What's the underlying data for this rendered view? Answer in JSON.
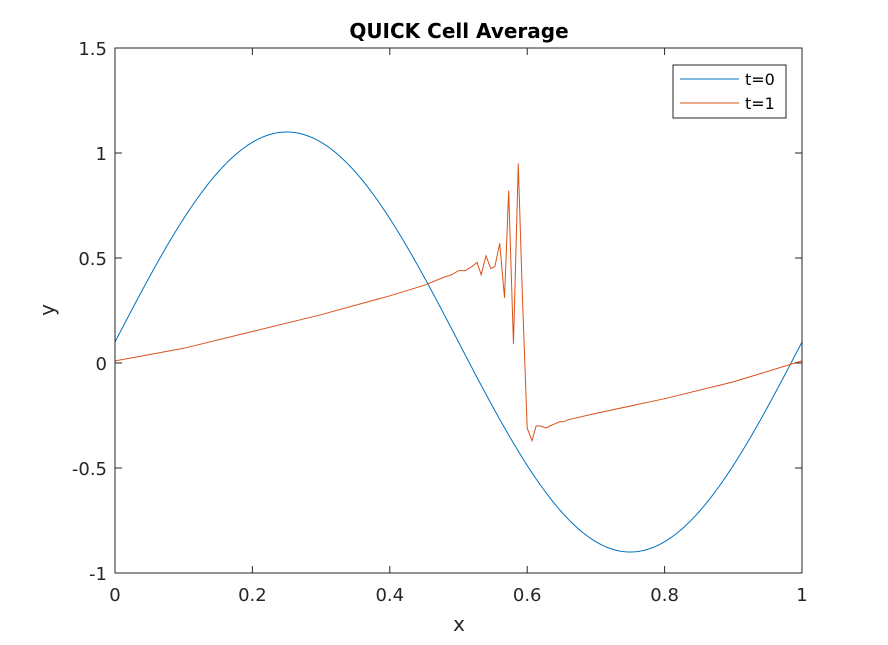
{
  "chart_data": {
    "type": "line",
    "title": "QUICK Cell Average",
    "xlabel": "x",
    "ylabel": "y",
    "xlim": [
      0,
      1
    ],
    "ylim": [
      -1,
      1.5
    ],
    "xticks": [
      0,
      0.2,
      0.4,
      0.6,
      0.8,
      1
    ],
    "xtick_labels": [
      "0",
      "0.2",
      "0.4",
      "0.6",
      "0.8",
      "1"
    ],
    "yticks": [
      -1,
      -0.5,
      0,
      0.5,
      1,
      1.5
    ],
    "ytick_labels": [
      "-1",
      "-0.5",
      "0",
      "0.5",
      "1",
      "1.5"
    ],
    "grid": false,
    "legend_position": "top-right",
    "series": [
      {
        "name": "t=0",
        "color": "#0072BD",
        "function": "0.1 + sin(2*pi*x)",
        "x": [
          0,
          0.05,
          0.1,
          0.15,
          0.2,
          0.25,
          0.3,
          0.35,
          0.4,
          0.45,
          0.5,
          0.55,
          0.6,
          0.65,
          0.7,
          0.75,
          0.8,
          0.85,
          0.9,
          0.95,
          1
        ],
        "y": [
          0.1,
          0.409,
          0.688,
          0.909,
          1.051,
          1.1,
          1.051,
          0.909,
          0.688,
          0.409,
          0.1,
          -0.209,
          -0.488,
          -0.709,
          -0.851,
          -0.9,
          -0.851,
          -0.709,
          -0.488,
          -0.209,
          0.1
        ]
      },
      {
        "name": "t=1",
        "color": "#D95319",
        "x": [
          0,
          0.1,
          0.2,
          0.3,
          0.4,
          0.45,
          0.48,
          0.49,
          0.5,
          0.51,
          0.52,
          0.527,
          0.533,
          0.54,
          0.547,
          0.553,
          0.56,
          0.567,
          0.573,
          0.58,
          0.587,
          0.593,
          0.6,
          0.607,
          0.613,
          0.62,
          0.627,
          0.633,
          0.64,
          0.647,
          0.653,
          0.66,
          0.7,
          0.8,
          0.9,
          1
        ],
        "y": [
          0.01,
          0.07,
          0.15,
          0.23,
          0.32,
          0.37,
          0.41,
          0.42,
          0.44,
          0.44,
          0.46,
          0.48,
          0.42,
          0.51,
          0.45,
          0.46,
          0.57,
          0.31,
          0.82,
          0.09,
          0.95,
          0.32,
          -0.31,
          -0.37,
          -0.3,
          -0.3,
          -0.31,
          -0.3,
          -0.29,
          -0.28,
          -0.28,
          -0.27,
          -0.24,
          -0.17,
          -0.09,
          0.01
        ]
      }
    ]
  }
}
